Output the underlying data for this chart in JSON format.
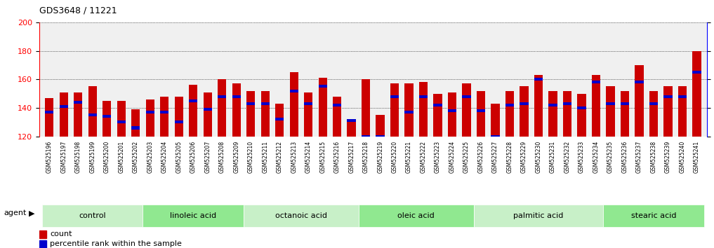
{
  "title": "GDS3648 / 11221",
  "ylim_left": [
    120,
    200
  ],
  "ylim_right": [
    0,
    100
  ],
  "yticks_left": [
    120,
    140,
    160,
    180,
    200
  ],
  "yticks_right": [
    0,
    25,
    50,
    75,
    100
  ],
  "bar_color": "#cc0000",
  "marker_color": "#0000cc",
  "background_color": "#f0f0f0",
  "samples": [
    "GSM525196",
    "GSM525197",
    "GSM525198",
    "GSM525199",
    "GSM525200",
    "GSM525201",
    "GSM525202",
    "GSM525203",
    "GSM525204",
    "GSM525205",
    "GSM525206",
    "GSM525207",
    "GSM525208",
    "GSM525209",
    "GSM525210",
    "GSM525211",
    "GSM525212",
    "GSM525213",
    "GSM525214",
    "GSM525215",
    "GSM525216",
    "GSM525217",
    "GSM525218",
    "GSM525219",
    "GSM525220",
    "GSM525221",
    "GSM525222",
    "GSM525223",
    "GSM525224",
    "GSM525225",
    "GSM525226",
    "GSM525227",
    "GSM525228",
    "GSM525229",
    "GSM525230",
    "GSM525231",
    "GSM525232",
    "GSM525233",
    "GSM525234",
    "GSM525235",
    "GSM525236",
    "GSM525237",
    "GSM525238",
    "GSM525239",
    "GSM525240",
    "GSM525241"
  ],
  "bar_heights": [
    147,
    151,
    151,
    155,
    145,
    145,
    139,
    146,
    148,
    148,
    156,
    151,
    160,
    157,
    152,
    152,
    143,
    165,
    151,
    161,
    148,
    131,
    160,
    135,
    157,
    157,
    158,
    150,
    151,
    157,
    152,
    143,
    152,
    155,
    163,
    152,
    152,
    150,
    163,
    155,
    152,
    170,
    152,
    155,
    155,
    180
  ],
  "blue_markers": [
    137,
    141,
    144,
    135,
    134,
    130,
    126,
    137,
    137,
    130,
    145,
    139,
    148,
    148,
    143,
    143,
    132,
    152,
    143,
    155,
    142,
    131,
    120,
    120,
    148,
    137,
    148,
    142,
    138,
    148,
    138,
    120,
    142,
    143,
    160,
    142,
    143,
    140,
    158,
    143,
    143,
    158,
    143,
    148,
    148,
    165
  ],
  "groups": [
    {
      "label": "control",
      "start": 0,
      "end": 7,
      "color": "#c8f0c8"
    },
    {
      "label": "linoleic acid",
      "start": 7,
      "end": 14,
      "color": "#90e890"
    },
    {
      "label": "octanoic acid",
      "start": 14,
      "end": 22,
      "color": "#c8f0c8"
    },
    {
      "label": "oleic acid",
      "start": 22,
      "end": 30,
      "color": "#90e890"
    },
    {
      "label": "palmitic acid",
      "start": 30,
      "end": 39,
      "color": "#c8f0c8"
    },
    {
      "label": "stearic acid",
      "start": 39,
      "end": 46,
      "color": "#90e890"
    }
  ]
}
